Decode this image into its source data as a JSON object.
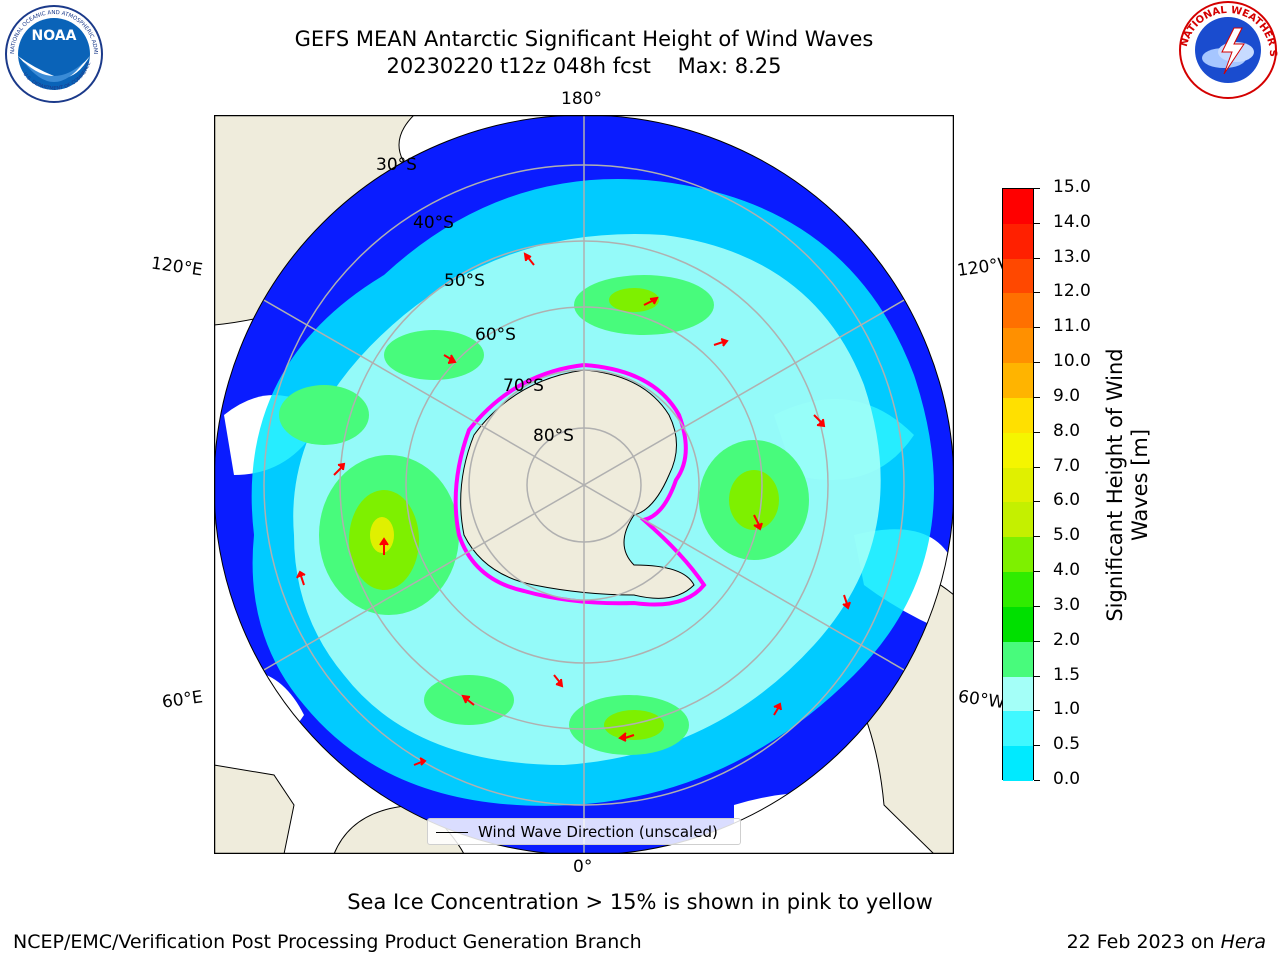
{
  "title": {
    "line1": "GEFS MEAN Antarctic Significant Height of Wind Waves",
    "line2": "20230220 t12z 048h fcst    Max: 8.25"
  },
  "logos": {
    "noaa_text": "NOAA",
    "noaa_ring_text": "NATIONAL OCEANIC AND ATMOSPHERIC ADMINISTRATION",
    "noaa_ring_bottom": "U.S. DEPARTMENT OF COMMERCE",
    "nws_ring_text": "NATIONAL WEATHER SERVICE"
  },
  "map": {
    "longitude_labels": {
      "top": "180°",
      "bottom": "0°",
      "upper_left": "120°E",
      "upper_right": "120°W",
      "lower_left": "60°E",
      "lower_right": "60°W"
    },
    "latitude_labels": [
      "30°S",
      "40°S",
      "50°S",
      "60°S",
      "70°S",
      "80°S"
    ],
    "legend": "Wind Wave Direction (unscaled)",
    "colors": {
      "land": "#efecdc",
      "ocean_blue": "#0a1cff",
      "grid": "#b0b0b0",
      "arrow": "#ff0000",
      "ice_edge": "#ff00ff"
    }
  },
  "colorbar": {
    "title_line1": "Significant Height of Wind",
    "title_line2": "Waves [m]",
    "ticks": [
      "15.0",
      "14.0",
      "13.0",
      "12.0",
      "11.0",
      "10.0",
      "9.0",
      "8.0",
      "7.0",
      "6.0",
      "5.0",
      "4.0",
      "3.0",
      "2.0",
      "1.5",
      "1.0",
      "0.5",
      "0.0"
    ],
    "colors": [
      "#ff0000",
      "#ff2000",
      "#ff4800",
      "#ff7000",
      "#ff9000",
      "#ffb400",
      "#ffe000",
      "#f5f500",
      "#e0f000",
      "#c4f000",
      "#7ef000",
      "#30ec00",
      "#00e000",
      "#48fb7c",
      "#a4fff8",
      "#40f8ff",
      "#00eaff",
      "#0088ff",
      "#0010ff"
    ]
  },
  "caption": "Sea Ice Concentration > 15% is shown in pink to yellow",
  "footer": {
    "left": "NCEP/EMC/Verification Post Processing Product Generation Branch",
    "right_date": "22 Feb 2023 on ",
    "right_system": "Hera"
  }
}
